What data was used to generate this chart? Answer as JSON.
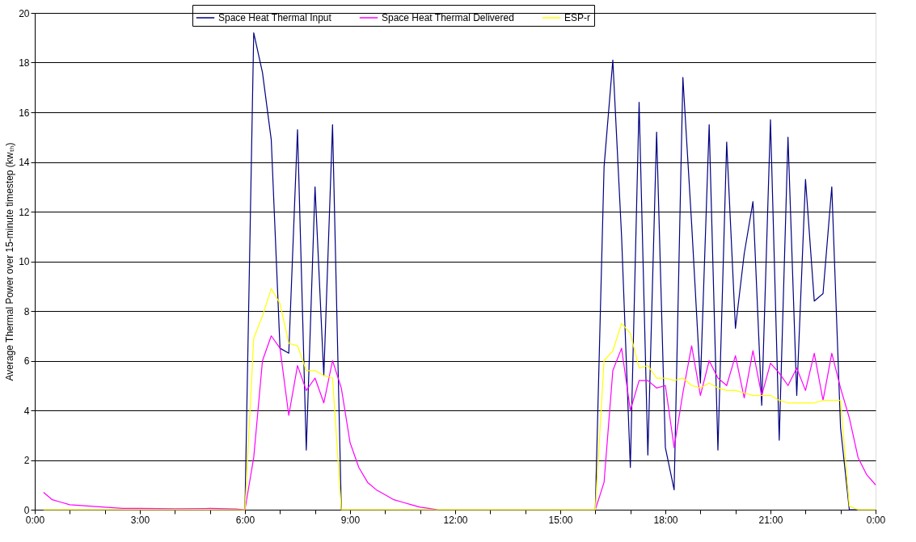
{
  "chart_data": {
    "type": "line",
    "ylabel": "Average Thermal  Power over 15-minute timestep (kwₜₕ)",
    "series": [
      {
        "name": "Space Heat Thermal Input",
        "color": "#000080",
        "x": [
          6.0,
          6.25,
          6.5,
          6.75,
          7.0,
          7.25,
          7.5,
          7.75,
          8.0,
          8.25,
          8.5,
          8.75,
          12.0,
          16.0,
          16.25,
          16.5,
          16.75,
          17.0,
          17.25,
          17.5,
          17.75,
          18.0,
          18.25,
          18.5,
          18.75,
          19.0,
          19.25,
          19.5,
          19.75,
          20.0,
          20.25,
          20.5,
          20.75,
          21.0,
          21.25,
          21.5,
          21.75,
          22.0,
          22.25,
          22.5,
          22.75,
          23.0,
          23.25,
          23.5
        ],
        "values": [
          0,
          19.2,
          17.6,
          14.9,
          6.5,
          6.3,
          15.3,
          2.4,
          13.0,
          5.4,
          15.5,
          0,
          null,
          0,
          13.8,
          18.1,
          11.0,
          1.7,
          16.4,
          2.2,
          15.2,
          2.5,
          0.8,
          17.4,
          11.5,
          5.1,
          15.5,
          2.4,
          14.8,
          7.3,
          10.3,
          12.4,
          4.2,
          15.7,
          2.8,
          15.0,
          4.6,
          13.3,
          8.4,
          8.7,
          13.0,
          3.3,
          0,
          0
        ]
      },
      {
        "name": "Space Heat Thermal Delivered",
        "color": "#ff00ff",
        "x": [
          0.25,
          0.5,
          0.75,
          1.0,
          1.5,
          2.0,
          2.5,
          3.0,
          4.0,
          5.0,
          5.75,
          6.0,
          6.25,
          6.5,
          6.75,
          7.0,
          7.25,
          7.5,
          7.75,
          8.0,
          8.25,
          8.5,
          8.75,
          9.0,
          9.25,
          9.5,
          9.75,
          10.0,
          10.25,
          10.5,
          10.75,
          11.0,
          11.25,
          11.5,
          12.0,
          16.0,
          16.25,
          16.5,
          16.75,
          17.0,
          17.25,
          17.5,
          17.75,
          18.0,
          18.25,
          18.5,
          18.75,
          19.0,
          19.25,
          19.5,
          19.75,
          20.0,
          20.25,
          20.5,
          20.75,
          21.0,
          21.25,
          21.5,
          21.75,
          22.0,
          22.25,
          22.5,
          22.75,
          23.0,
          23.25,
          23.5,
          23.75,
          24.0
        ],
        "values": [
          0.7,
          0.4,
          0.3,
          0.2,
          0.15,
          0.1,
          0.05,
          0.05,
          0.04,
          0.05,
          0.03,
          0,
          2.1,
          6.0,
          7.0,
          6.5,
          3.8,
          5.8,
          4.8,
          5.3,
          4.3,
          6.0,
          4.9,
          2.7,
          1.7,
          1.1,
          0.8,
          0.6,
          0.4,
          0.3,
          0.2,
          0.1,
          0.05,
          0,
          null,
          0,
          1.1,
          5.6,
          6.5,
          4.0,
          5.2,
          5.2,
          4.9,
          5.0,
          2.5,
          4.7,
          6.6,
          4.6,
          6.0,
          5.3,
          5.0,
          6.2,
          4.5,
          6.4,
          4.6,
          5.9,
          5.5,
          5.0,
          5.7,
          4.8,
          6.3,
          4.4,
          6.3,
          4.9,
          3.7,
          2.1,
          1.4,
          1.0
        ]
      },
      {
        "name": "ESP-r",
        "color": "#ffff00",
        "x": [
          0.25,
          6.0,
          6.25,
          6.5,
          6.75,
          7.0,
          7.25,
          7.5,
          7.75,
          8.0,
          8.25,
          8.5,
          8.75,
          16.0,
          16.25,
          16.5,
          16.75,
          17.0,
          17.25,
          17.5,
          17.75,
          18.0,
          18.25,
          18.5,
          18.75,
          19.0,
          19.25,
          19.5,
          19.75,
          20.0,
          20.25,
          20.5,
          20.75,
          21.0,
          21.25,
          21.5,
          21.75,
          22.0,
          22.25,
          22.5,
          22.75,
          23.0,
          23.25,
          23.5,
          24.0
        ],
        "values": [
          0,
          0,
          6.9,
          7.8,
          8.9,
          8.3,
          6.7,
          6.6,
          5.6,
          5.6,
          5.4,
          5.3,
          0,
          0,
          6.0,
          6.4,
          7.5,
          7.1,
          5.7,
          5.8,
          5.3,
          5.3,
          5.2,
          5.3,
          5.0,
          4.9,
          5.1,
          4.9,
          4.8,
          4.8,
          4.7,
          4.6,
          4.6,
          4.6,
          4.4,
          4.3,
          4.3,
          4.3,
          4.3,
          4.4,
          4.4,
          4.4,
          0.15,
          0,
          0
        ]
      }
    ],
    "xlim": [
      0,
      24
    ],
    "xticks": [
      {
        "value": 0,
        "label": "0:00"
      },
      {
        "value": 1,
        "label": null
      },
      {
        "value": 2,
        "label": null
      },
      {
        "value": 3,
        "label": "3:00"
      },
      {
        "value": 4,
        "label": null
      },
      {
        "value": 5,
        "label": null
      },
      {
        "value": 6,
        "label": "6:00"
      },
      {
        "value": 7,
        "label": null
      },
      {
        "value": 8,
        "label": null
      },
      {
        "value": 9,
        "label": "9:00"
      },
      {
        "value": 10,
        "label": null
      },
      {
        "value": 11,
        "label": null
      },
      {
        "value": 12,
        "label": "12:00"
      },
      {
        "value": 13,
        "label": null
      },
      {
        "value": 14,
        "label": null
      },
      {
        "value": 15,
        "label": "15:00"
      },
      {
        "value": 16,
        "label": null
      },
      {
        "value": 17,
        "label": null
      },
      {
        "value": 18,
        "label": "18:00"
      },
      {
        "value": 19,
        "label": null
      },
      {
        "value": 20,
        "label": null
      },
      {
        "value": 21,
        "label": "21:00"
      },
      {
        "value": 22,
        "label": null
      },
      {
        "value": 23,
        "label": null
      },
      {
        "value": 24,
        "label": "0:00"
      }
    ],
    "ylim": [
      0,
      20
    ],
    "yticks": [
      0,
      2,
      4,
      6,
      8,
      10,
      12,
      14,
      16,
      18,
      20
    ],
    "grid": "y",
    "legend": "top",
    "marker": "none",
    "line_style": "solid"
  }
}
